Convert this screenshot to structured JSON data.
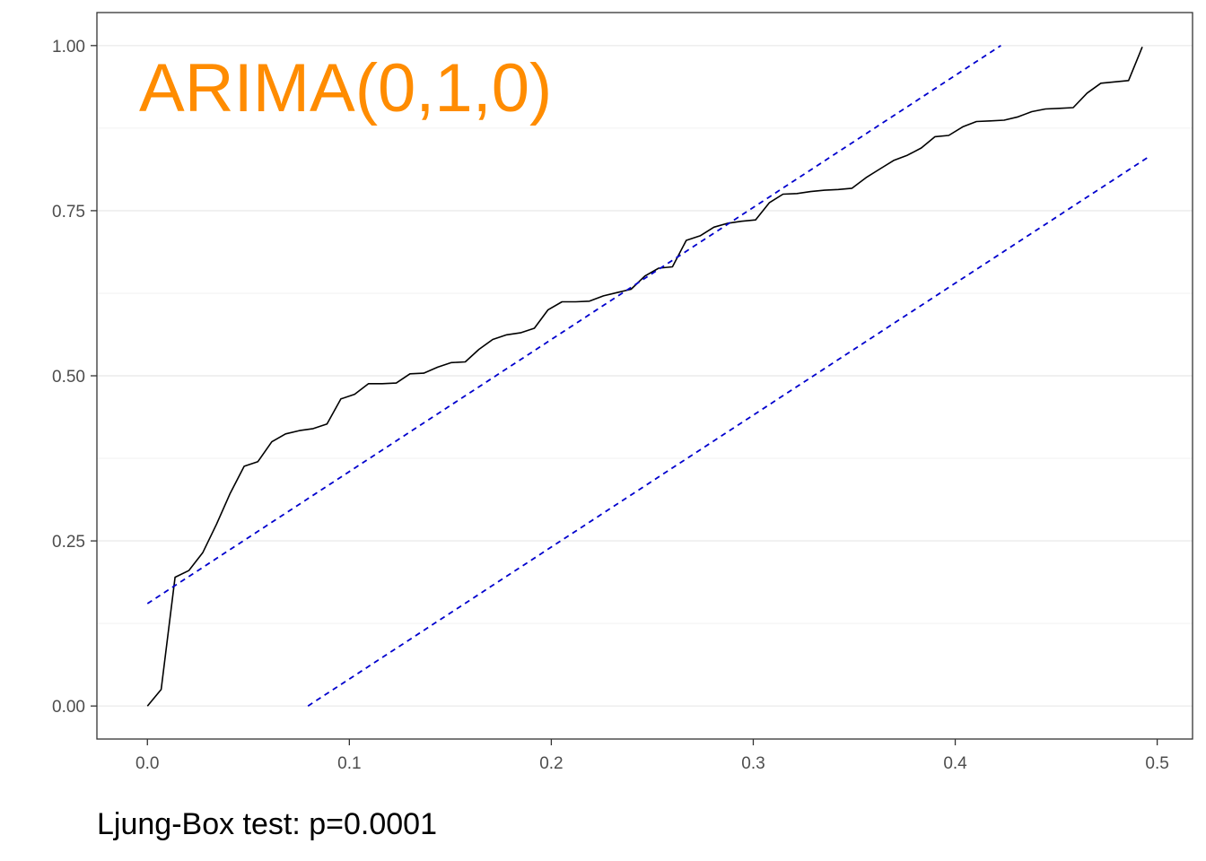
{
  "chart_data": {
    "type": "line",
    "title": "",
    "xlabel": "",
    "ylabel": "",
    "xlim": [
      -0.025,
      0.5175
    ],
    "ylim": [
      -0.05,
      1.05
    ],
    "x_ticks": [
      0.0,
      0.1,
      0.2,
      0.3,
      0.4,
      0.5
    ],
    "x_tick_labels": [
      "0.0",
      "0.1",
      "0.2",
      "0.3",
      "0.4",
      "0.5"
    ],
    "y_ticks": [
      0.0,
      0.25,
      0.5,
      0.75,
      1.0
    ],
    "y_tick_labels": [
      "0.00",
      "0.25",
      "0.50",
      "0.75",
      "1.00"
    ],
    "grid": "horizontal",
    "annotation": {
      "text": "ARIMA(0,1,0)",
      "color": "#FF8C00"
    },
    "series": [
      {
        "color": "#000000",
        "style": "solid",
        "x": [
          0.0,
          0.0068,
          0.0137,
          0.0205,
          0.0274,
          0.0342,
          0.041,
          0.0479,
          0.0547,
          0.0616,
          0.0684,
          0.0753,
          0.0821,
          0.0889,
          0.0958,
          0.1026,
          0.1095,
          0.1163,
          0.1232,
          0.13,
          0.1368,
          0.1437,
          0.1505,
          0.1574,
          0.1642,
          0.171,
          0.1779,
          0.1847,
          0.1916,
          0.1984,
          0.2053,
          0.2121,
          0.2189,
          0.2258,
          0.2326,
          0.2395,
          0.2463,
          0.2532,
          0.26,
          0.2668,
          0.2737,
          0.2805,
          0.2874,
          0.2942,
          0.3011,
          0.3079,
          0.3147,
          0.3216,
          0.3284,
          0.3353,
          0.3421,
          0.3489,
          0.3558,
          0.3626,
          0.3695,
          0.3763,
          0.3832,
          0.39,
          0.3968,
          0.4037,
          0.4105,
          0.4174,
          0.4242,
          0.4311,
          0.4379,
          0.4447,
          0.4516,
          0.4584,
          0.4653,
          0.4721,
          0.4789,
          0.4858,
          0.4926
        ],
        "y": [
          0.0,
          0.025,
          0.195,
          0.205,
          0.232,
          0.275,
          0.322,
          0.363,
          0.37,
          0.4,
          0.412,
          0.417,
          0.42,
          0.427,
          0.465,
          0.472,
          0.488,
          0.488,
          0.489,
          0.503,
          0.504,
          0.513,
          0.52,
          0.521,
          0.54,
          0.555,
          0.562,
          0.565,
          0.572,
          0.6,
          0.612,
          0.612,
          0.613,
          0.621,
          0.626,
          0.631,
          0.651,
          0.663,
          0.665,
          0.705,
          0.712,
          0.725,
          0.731,
          0.734,
          0.736,
          0.762,
          0.775,
          0.776,
          0.779,
          0.781,
          0.782,
          0.784,
          0.8,
          0.813,
          0.826,
          0.834,
          0.845,
          0.862,
          0.864,
          0.877,
          0.885,
          0.886,
          0.887,
          0.892,
          0.9,
          0.904,
          0.905,
          0.906,
          0.928,
          0.943,
          0.945,
          0.947,
          0.998
        ]
      },
      {
        "color": "#0000CD",
        "style": "dashed",
        "x": [
          0.0,
          0.4226
        ],
        "y": [
          0.155,
          1.0
        ]
      },
      {
        "color": "#0000CD",
        "style": "dashed",
        "x": [
          0.0795,
          0.495
        ],
        "y": [
          0.0,
          0.83
        ]
      }
    ]
  },
  "caption": "Ljung-Box test: p=0.0001"
}
